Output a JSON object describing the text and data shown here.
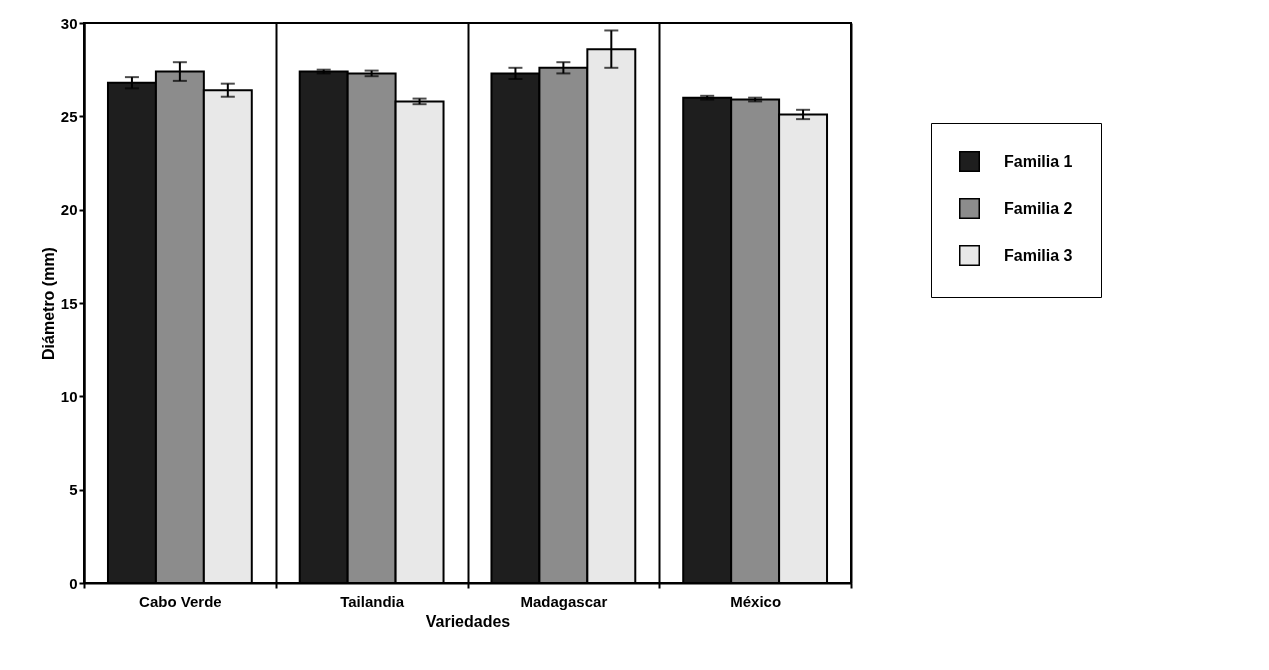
{
  "chart_data": {
    "type": "bar",
    "xlabel": "Variedades",
    "ylabel": "Diámetro (mm)",
    "categories": [
      "Cabo Verde",
      "Tailandia",
      "Madagascar",
      "México"
    ],
    "series": [
      {
        "name": "Familia 1",
        "color": "#1e1e1e",
        "values": [
          26.8,
          27.4,
          27.3,
          26.0
        ],
        "errors": [
          0.3,
          0.1,
          0.3,
          0.1
        ]
      },
      {
        "name": "Familia 2",
        "color": "#8c8c8c",
        "values": [
          27.4,
          27.3,
          27.6,
          25.9
        ],
        "errors": [
          0.5,
          0.15,
          0.3,
          0.1
        ]
      },
      {
        "name": "Familia 3",
        "color": "#e8e8e8",
        "values": [
          26.4,
          25.8,
          28.6,
          25.1
        ],
        "errors": [
          0.35,
          0.15,
          1.0,
          0.25
        ]
      }
    ],
    "ylim": [
      0,
      30
    ],
    "yticks": [
      0,
      5,
      10,
      15,
      20,
      25,
      30
    ],
    "grid": "x",
    "legend": "right"
  }
}
